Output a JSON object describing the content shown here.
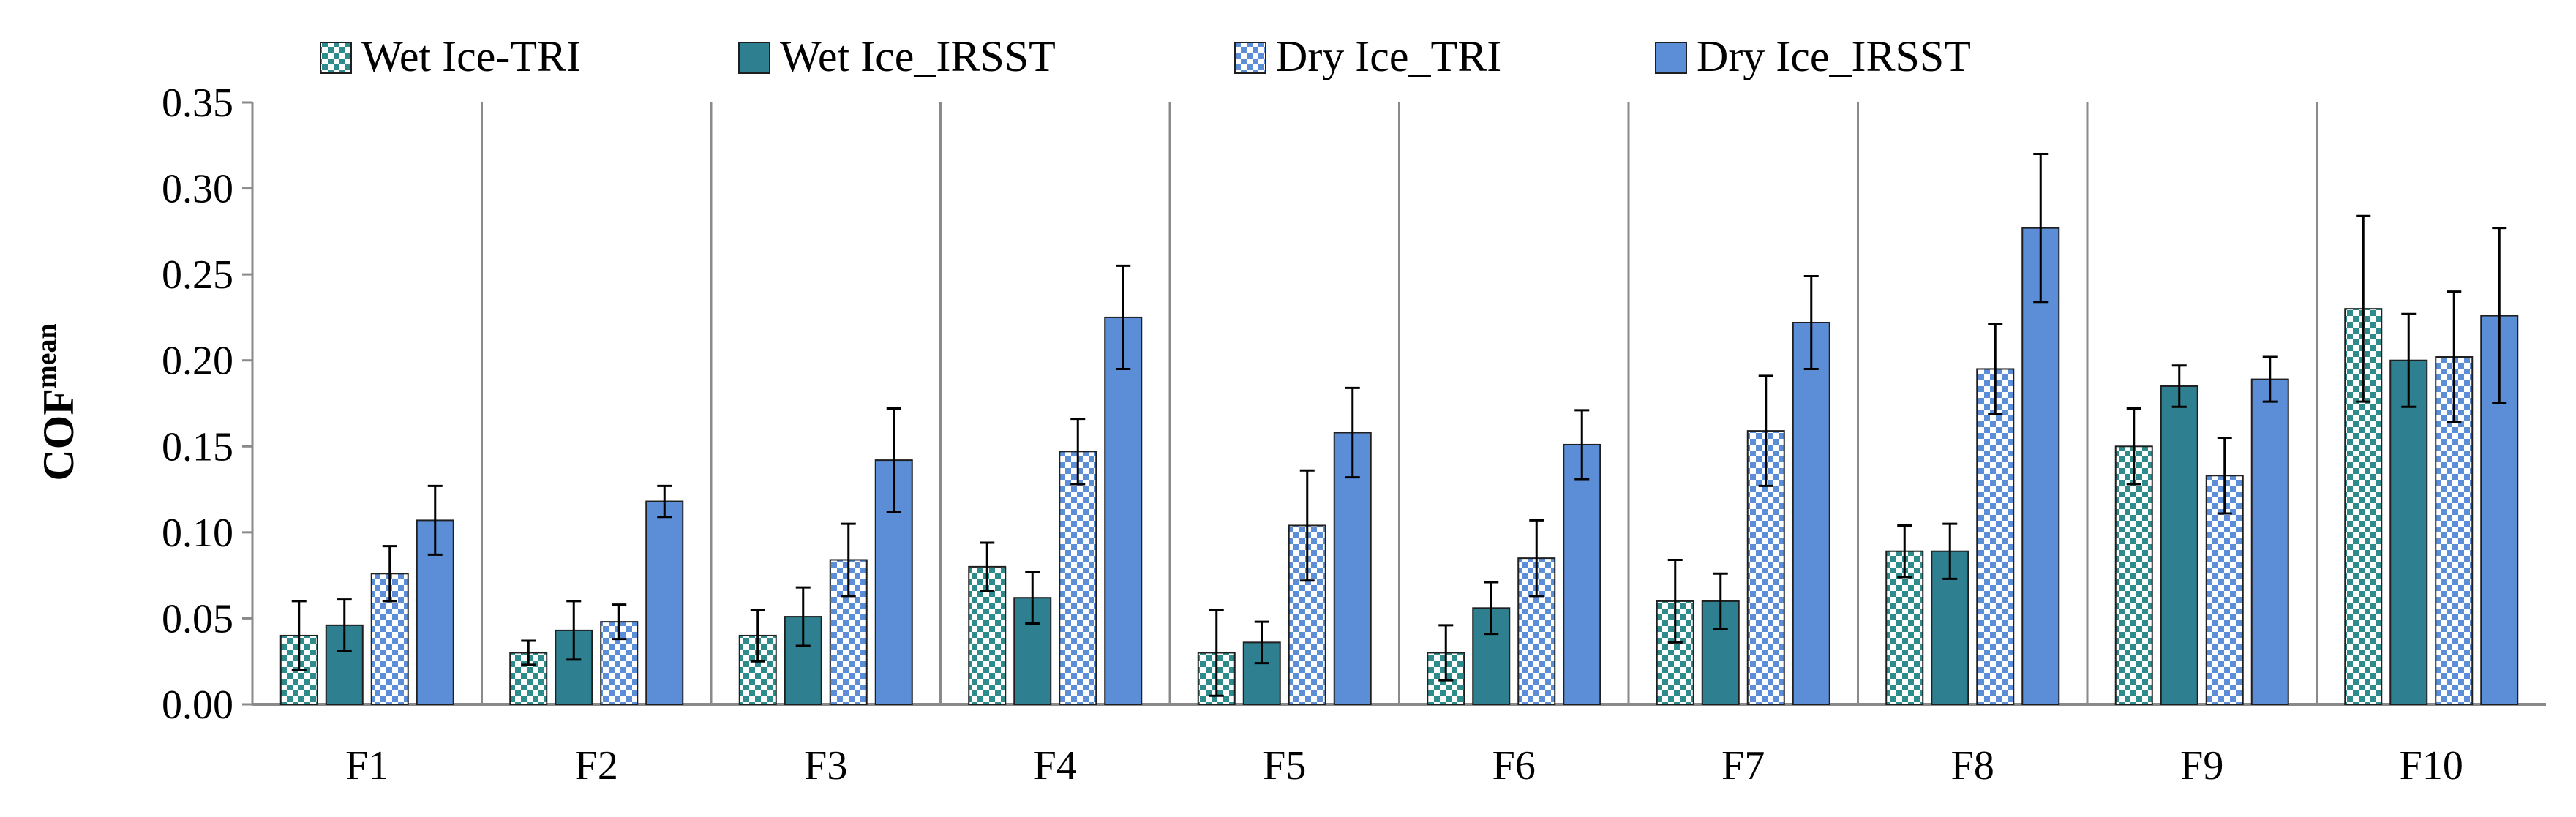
{
  "chart_data": {
    "type": "bar",
    "title": "",
    "xlabel": "",
    "ylabel": "COF",
    "ylabel_sup": "mean",
    "ylim": [
      0,
      0.35
    ],
    "yticks": [
      "0.00",
      "0.05",
      "0.10",
      "0.15",
      "0.20",
      "0.25",
      "0.30",
      "0.35"
    ],
    "ytick_values": [
      0,
      0.05,
      0.1,
      0.15,
      0.2,
      0.25,
      0.3,
      0.35
    ],
    "categories": [
      "F1",
      "F2",
      "F3",
      "F4",
      "F5",
      "F6",
      "F7",
      "F8",
      "F9",
      "F10"
    ],
    "legend_position": "top",
    "series": [
      {
        "name": "Wet Ice-TRI",
        "color": "#2e8b8b",
        "pattern": "checker",
        "values": [
          0.04,
          0.03,
          0.04,
          0.08,
          0.03,
          0.03,
          0.06,
          0.089,
          0.15,
          0.23
        ],
        "errors": [
          0.02,
          0.007,
          0.015,
          0.014,
          0.025,
          0.016,
          0.024,
          0.015,
          0.022,
          0.054
        ]
      },
      {
        "name": "Wet Ice_IRSST",
        "color": "#2e7f8f",
        "pattern": "solid",
        "values": [
          0.046,
          0.043,
          0.051,
          0.062,
          0.036,
          0.056,
          0.06,
          0.089,
          0.185,
          0.2
        ],
        "errors": [
          0.015,
          0.017,
          0.017,
          0.015,
          0.012,
          0.015,
          0.016,
          0.016,
          0.012,
          0.027
        ]
      },
      {
        "name": "Dry Ice_TRI",
        "color": "#5b8ed6",
        "pattern": "checker",
        "values": [
          0.076,
          0.048,
          0.084,
          0.147,
          0.104,
          0.085,
          0.159,
          0.195,
          0.133,
          0.202
        ],
        "errors": [
          0.016,
          0.01,
          0.021,
          0.019,
          0.032,
          0.022,
          0.032,
          0.026,
          0.022,
          0.038
        ]
      },
      {
        "name": "Dry Ice_IRSST",
        "color": "#5b8ed6",
        "pattern": "solid",
        "values": [
          0.107,
          0.118,
          0.142,
          0.225,
          0.158,
          0.151,
          0.222,
          0.277,
          0.189,
          0.226
        ],
        "errors": [
          0.02,
          0.009,
          0.03,
          0.03,
          0.026,
          0.02,
          0.027,
          0.043,
          0.013,
          0.051
        ]
      }
    ]
  }
}
